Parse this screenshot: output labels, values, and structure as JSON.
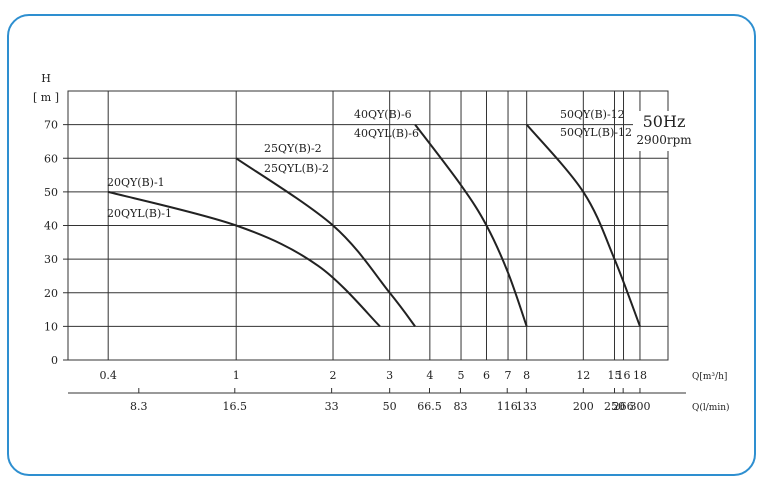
{
  "chart_data": {
    "type": "line",
    "ylabel": "H",
    "yunit": "[ m ]",
    "yticks": [
      0,
      10,
      20,
      30,
      40,
      50,
      60,
      70
    ],
    "ylim": [
      0,
      80
    ],
    "x_axis_m3h": {
      "label": "Q[m³/h]",
      "ticks": [
        "0.4",
        "1",
        "2",
        "3",
        "4",
        "5",
        "6",
        "7",
        "8",
        "12",
        "15",
        "16",
        "18"
      ],
      "scale": "log"
    },
    "x_axis_lmin": {
      "label": "Q(l/min)",
      "ticks": [
        "8.3",
        "16.5",
        "33",
        "50",
        "66.5",
        "83",
        "116",
        "133",
        "200",
        "250",
        "266",
        "300"
      ],
      "scale": "log"
    },
    "annotation": {
      "freq": "50Hz",
      "speed": "2900rpm"
    },
    "grid": true,
    "series": [
      {
        "names": [
          "20QY(B)-1",
          "20QYL(B)-1"
        ],
        "points": [
          [
            0.4,
            50
          ],
          [
            1,
            40
          ],
          [
            1.8,
            28
          ],
          [
            2.8,
            10
          ]
        ]
      },
      {
        "names": [
          "25QY(B)-2",
          "25QYL(B)-2"
        ],
        "points": [
          [
            1,
            60
          ],
          [
            2,
            40
          ],
          [
            3,
            20
          ],
          [
            3.6,
            10
          ]
        ]
      },
      {
        "names": [
          "40QY(B)-6",
          "40QYL(B)-6"
        ],
        "points": [
          [
            3.6,
            70
          ],
          [
            5,
            52
          ],
          [
            6,
            40
          ],
          [
            7,
            26
          ],
          [
            8,
            10
          ]
        ]
      },
      {
        "names": [
          "50QY(B)-12",
          "50QYL(B)-12"
        ],
        "points": [
          [
            8,
            70
          ],
          [
            12,
            50
          ],
          [
            15,
            30
          ],
          [
            18,
            10
          ]
        ]
      }
    ]
  }
}
